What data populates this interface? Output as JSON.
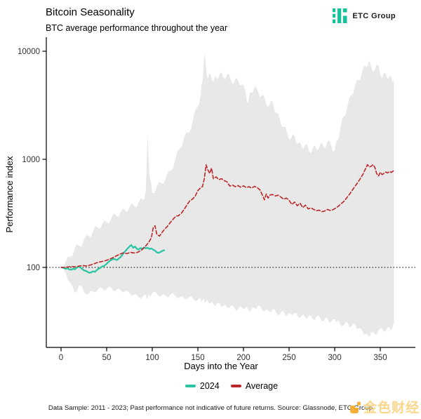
{
  "header": {
    "title": "Bitcoin Seasonality",
    "subtitle": "BTC average performance throughout the year",
    "logo_text": "ETC Group",
    "logo_color": "#15c39a"
  },
  "chart_data": {
    "type": "line",
    "title": "Bitcoin Seasonality",
    "subtitle": "BTC average performance throughout the year",
    "xlabel": "Days into the Year",
    "ylabel": "Performance index",
    "y_scale": "log",
    "x_ticks": [
      0,
      50,
      100,
      150,
      200,
      250,
      300,
      350
    ],
    "y_ticks": [
      100,
      1000,
      10000
    ],
    "x_range": [
      -16,
      389
    ],
    "y_range": [
      18,
      13000
    ],
    "baseline": 100,
    "grid": "off",
    "legend_position": "bottom",
    "band": {
      "name": "2011-2023 historical range",
      "color": "#e8e8e8",
      "x": [
        0,
        5,
        10,
        15,
        20,
        25,
        30,
        35,
        40,
        45,
        50,
        55,
        60,
        65,
        70,
        75,
        80,
        85,
        90,
        93,
        95,
        97,
        100,
        105,
        110,
        115,
        120,
        125,
        130,
        135,
        140,
        145,
        150,
        153,
        155,
        157,
        159,
        161,
        164,
        167,
        170,
        174,
        178,
        182,
        186,
        190,
        194,
        198,
        202,
        205,
        208,
        212,
        216,
        220,
        224,
        228,
        232,
        236,
        240,
        244,
        248,
        252,
        256,
        260,
        264,
        268,
        272,
        276,
        280,
        284,
        288,
        292,
        296,
        300,
        303,
        306,
        310,
        314,
        318,
        322,
        326,
        330,
        334,
        337,
        340,
        344,
        348,
        352,
        356,
        360,
        363,
        365
      ],
      "upper": [
        102,
        112,
        125,
        150,
        158,
        178,
        195,
        215,
        235,
        250,
        262,
        285,
        305,
        320,
        340,
        360,
        372,
        398,
        420,
        520,
        1700,
        700,
        490,
        560,
        600,
        680,
        780,
        980,
        1250,
        1600,
        1750,
        2400,
        3100,
        3900,
        5200,
        9500,
        7000,
        5600,
        6100,
        5300,
        5700,
        6200,
        5700,
        6100,
        5500,
        5200,
        5400,
        4900,
        4300,
        3300,
        4200,
        4600,
        4200,
        3900,
        3500,
        3100,
        3400,
        2700,
        2300,
        2000,
        1750,
        1550,
        1650,
        1400,
        1300,
        1380,
        1180,
        1280,
        1240,
        1380,
        1300,
        1450,
        1350,
        1200,
        1500,
        1900,
        2500,
        3100,
        3900,
        4700,
        5400,
        6400,
        7300,
        7900,
        7200,
        6700,
        7400,
        5600,
        6200,
        5800,
        5300,
        5600
      ],
      "lower": [
        98,
        88,
        72,
        58,
        69,
        60,
        57,
        60,
        62,
        64,
        63,
        65,
        61,
        62,
        60,
        58,
        56,
        53,
        54,
        55,
        52,
        55,
        58,
        57,
        55,
        54,
        56,
        55,
        53,
        52,
        53,
        51,
        50,
        51,
        49,
        50,
        48,
        49,
        47,
        46,
        45,
        46,
        44,
        43,
        44,
        42,
        41,
        43,
        42,
        41,
        40,
        42,
        44,
        41,
        40,
        39,
        41,
        38,
        37,
        39,
        36,
        37,
        38,
        35,
        36,
        34,
        36,
        33,
        35,
        34,
        32,
        34,
        31,
        33,
        32,
        30,
        29,
        31,
        28,
        30,
        27,
        26,
        24,
        23,
        25,
        24,
        26,
        27,
        26,
        28,
        27,
        30
      ]
    },
    "series": [
      {
        "name": "2024",
        "color": "#2cc5a4",
        "style": "solid",
        "x": [
          1,
          3,
          5,
          7,
          9,
          11,
          13,
          15,
          17,
          19,
          21,
          23,
          25,
          27,
          29,
          31,
          33,
          35,
          37,
          39,
          41,
          43,
          45,
          47,
          49,
          51,
          53,
          55,
          57,
          59,
          61,
          63,
          65,
          67,
          69,
          71,
          73,
          75,
          77,
          79,
          81,
          83,
          85,
          87,
          89,
          91,
          93,
          95,
          97,
          99,
          101,
          103,
          105,
          107,
          109,
          111,
          113
        ],
        "values": [
          100,
          99,
          97,
          98,
          96,
          95,
          97,
          96,
          99,
          102,
          100,
          97,
          94,
          93,
          91,
          89,
          90,
          92,
          91,
          94,
          97,
          99,
          102,
          103,
          106,
          110,
          114,
          117,
          120,
          119,
          117,
          120,
          124,
          130,
          137,
          143,
          150,
          156,
          161,
          152,
          156,
          149,
          146,
          151,
          148,
          153,
          150,
          152,
          148,
          150,
          146,
          143,
          138,
          136,
          139,
          142,
          144
        ]
      },
      {
        "name": "Average",
        "color": "#bb2528",
        "style": "dashed",
        "x": [
          0,
          4,
          8,
          12,
          16,
          20,
          24,
          28,
          32,
          36,
          40,
          44,
          48,
          52,
          56,
          60,
          64,
          68,
          72,
          76,
          80,
          84,
          88,
          92,
          96,
          99,
          101,
          103,
          105,
          108,
          111,
          114,
          117,
          120,
          123,
          126,
          129,
          132,
          135,
          138,
          141,
          144,
          147,
          150,
          153,
          155,
          157,
          159,
          161,
          163,
          165,
          167,
          170,
          173,
          176,
          179,
          182,
          185,
          188,
          191,
          194,
          197,
          200,
          203,
          206,
          209,
          212,
          215,
          218,
          221,
          223,
          225,
          227,
          229,
          232,
          235,
          238,
          241,
          244,
          247,
          250,
          253,
          256,
          259,
          262,
          265,
          268,
          271,
          274,
          277,
          280,
          283,
          286,
          289,
          292,
          295,
          298,
          301,
          304,
          307,
          310,
          313,
          316,
          319,
          322,
          325,
          328,
          331,
          334,
          336,
          338,
          340,
          342,
          344,
          346,
          348,
          350,
          352,
          354,
          356,
          358,
          360,
          362,
          365
        ],
        "values": [
          100,
          100,
          101,
          102,
          101,
          103,
          104,
          103,
          105,
          108,
          111,
          113,
          115,
          118,
          122,
          127,
          132,
          136,
          134,
          138,
          136,
          138,
          144,
          155,
          170,
          188,
          232,
          243,
          202,
          195,
          212,
          228,
          242,
          262,
          280,
          298,
          302,
          318,
          345,
          378,
          412,
          428,
          455,
          515,
          545,
          560,
          655,
          890,
          798,
          742,
          828,
          662,
          688,
          648,
          662,
          635,
          618,
          565,
          578,
          558,
          572,
          552,
          568,
          548,
          558,
          542,
          562,
          548,
          522,
          462,
          422,
          478,
          438,
          468,
          472,
          458,
          466,
          448,
          428,
          438,
          418,
          382,
          402,
          372,
          392,
          358,
          376,
          348,
          356,
          344,
          334,
          338,
          328,
          332,
          344,
          336,
          342,
          354,
          368,
          388,
          408,
          438,
          472,
          515,
          558,
          605,
          662,
          728,
          825,
          892,
          848,
          862,
          895,
          842,
          738,
          702,
          758,
          722,
          742,
          762,
          748,
          772,
          756,
          788
        ]
      }
    ]
  },
  "legend": [
    {
      "key": "2024",
      "label": "2024",
      "color": "#2cc5a4"
    },
    {
      "key": "average",
      "label": "Average",
      "color": "#bb2528"
    }
  ],
  "footer": {
    "disclaimer": "Data Sample: 2011 - 2023; Past performance not indicative of future returns. Source: Glassnode, ETC Group"
  },
  "watermark": {
    "text": "金色财经",
    "color": "#f8b62d"
  }
}
